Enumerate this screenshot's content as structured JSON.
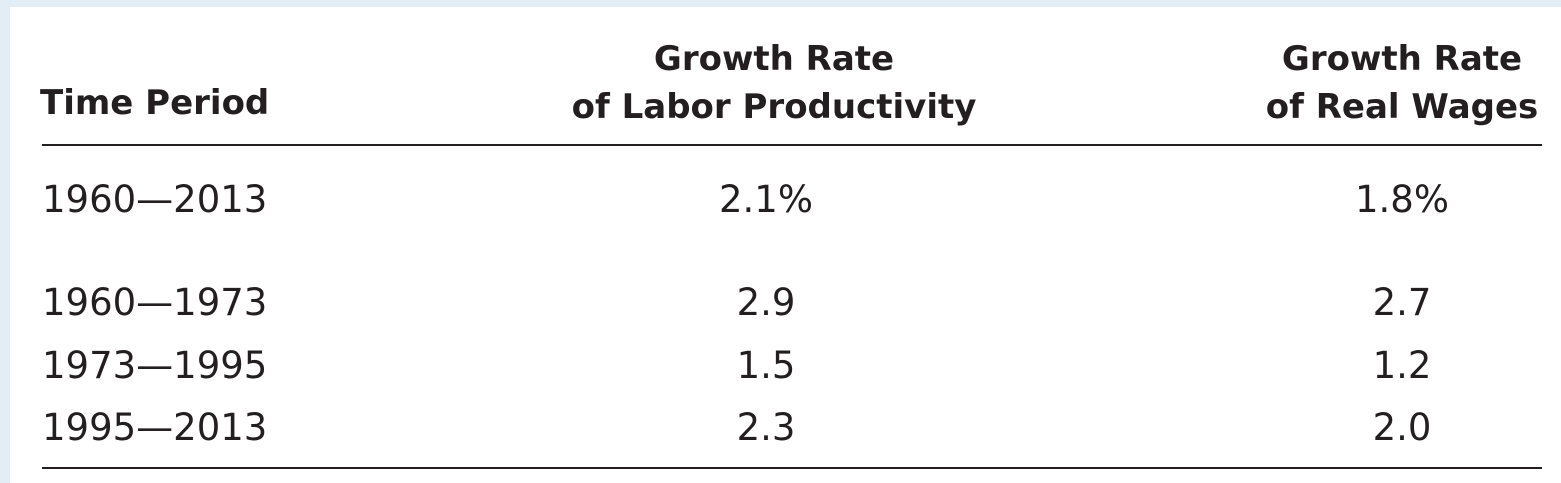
{
  "table": {
    "headers": {
      "time_period": "Time Period",
      "productivity_line1": "Growth Rate",
      "productivity_line2": "of Labor Productivity",
      "wages_line1": "Growth Rate",
      "wages_line2": "of Real Wages"
    },
    "rows": [
      {
        "period": "1960—2013",
        "productivity": "2.1%",
        "wages": "1.8%"
      },
      {
        "period": "1960—1973",
        "productivity": "2.9",
        "wages": "2.7"
      },
      {
        "period": "1973—1995",
        "productivity": "1.5",
        "wages": "1.2"
      },
      {
        "period": "1995—2013",
        "productivity": "2.3",
        "wages": "2.0"
      }
    ]
  },
  "colors": {
    "background": "#e3edf6",
    "panel": "#ffffff",
    "text": "#231f20",
    "rule": "#231f20"
  }
}
